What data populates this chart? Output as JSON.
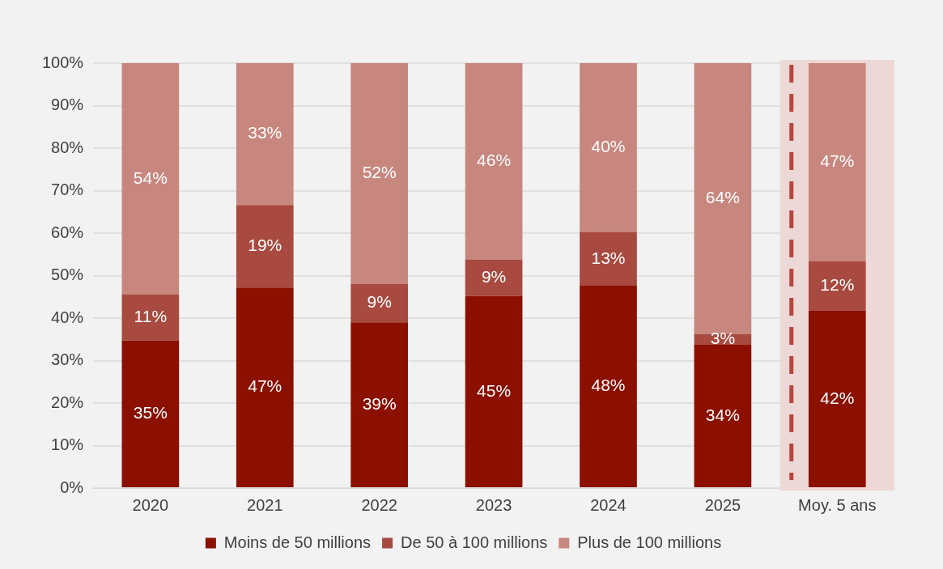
{
  "chart_data": {
    "type": "bar",
    "stacked": true,
    "categories": [
      "2020",
      "2021",
      "2022",
      "2023",
      "2024",
      "2025",
      "Moy. 5 ans"
    ],
    "series": [
      {
        "name": "Moins de 50 millions",
        "color": "#8b1000",
        "values": [
          34.7,
          47.2,
          39.0,
          45.2,
          47.6,
          33.7,
          41.8
        ],
        "value_labels": [
          "35%",
          "47%",
          "39%",
          "45%",
          "48%",
          "34%",
          "42%"
        ]
      },
      {
        "name": "De 50 à 100 millions",
        "color": "#a84a40",
        "values": [
          10.9,
          19.4,
          9.0,
          8.6,
          12.6,
          2.6,
          11.6
        ],
        "value_labels": [
          "11%",
          "19%",
          "9%",
          "9%",
          "13%",
          "3%",
          "12%"
        ]
      },
      {
        "name": "Plus de 100 millions",
        "color": "#c8877e",
        "values": [
          54.4,
          33.4,
          52.0,
          46.2,
          39.8,
          63.7,
          46.6
        ],
        "value_labels": [
          "54%",
          "33%",
          "52%",
          "46%",
          "40%",
          "64%",
          "47%"
        ]
      }
    ],
    "ylim": [
      0,
      100
    ],
    "yticks": [
      {
        "value": 0,
        "label": "0%"
      },
      {
        "value": 10,
        "label": "10%"
      },
      {
        "value": 20,
        "label": "20%"
      },
      {
        "value": 30,
        "label": "30%"
      },
      {
        "value": 40,
        "label": "40%"
      },
      {
        "value": 50,
        "label": "50%"
      },
      {
        "value": 60,
        "label": "60%"
      },
      {
        "value": 70,
        "label": "70%"
      },
      {
        "value": 80,
        "label": "80%"
      },
      {
        "value": 90,
        "label": "90%"
      },
      {
        "value": 100,
        "label": "100%"
      }
    ],
    "grid": "y",
    "legend": "bottom",
    "bands": [
      {
        "axis": "x",
        "from": "Moy. 5 ans",
        "to": "Moy. 5 ans",
        "color": "#ecd8d6"
      }
    ],
    "ref_lines": [
      {
        "axis": "x",
        "value": "Moy. 5 ans",
        "color": "#b9453b",
        "line_style": "dashed"
      }
    ]
  }
}
